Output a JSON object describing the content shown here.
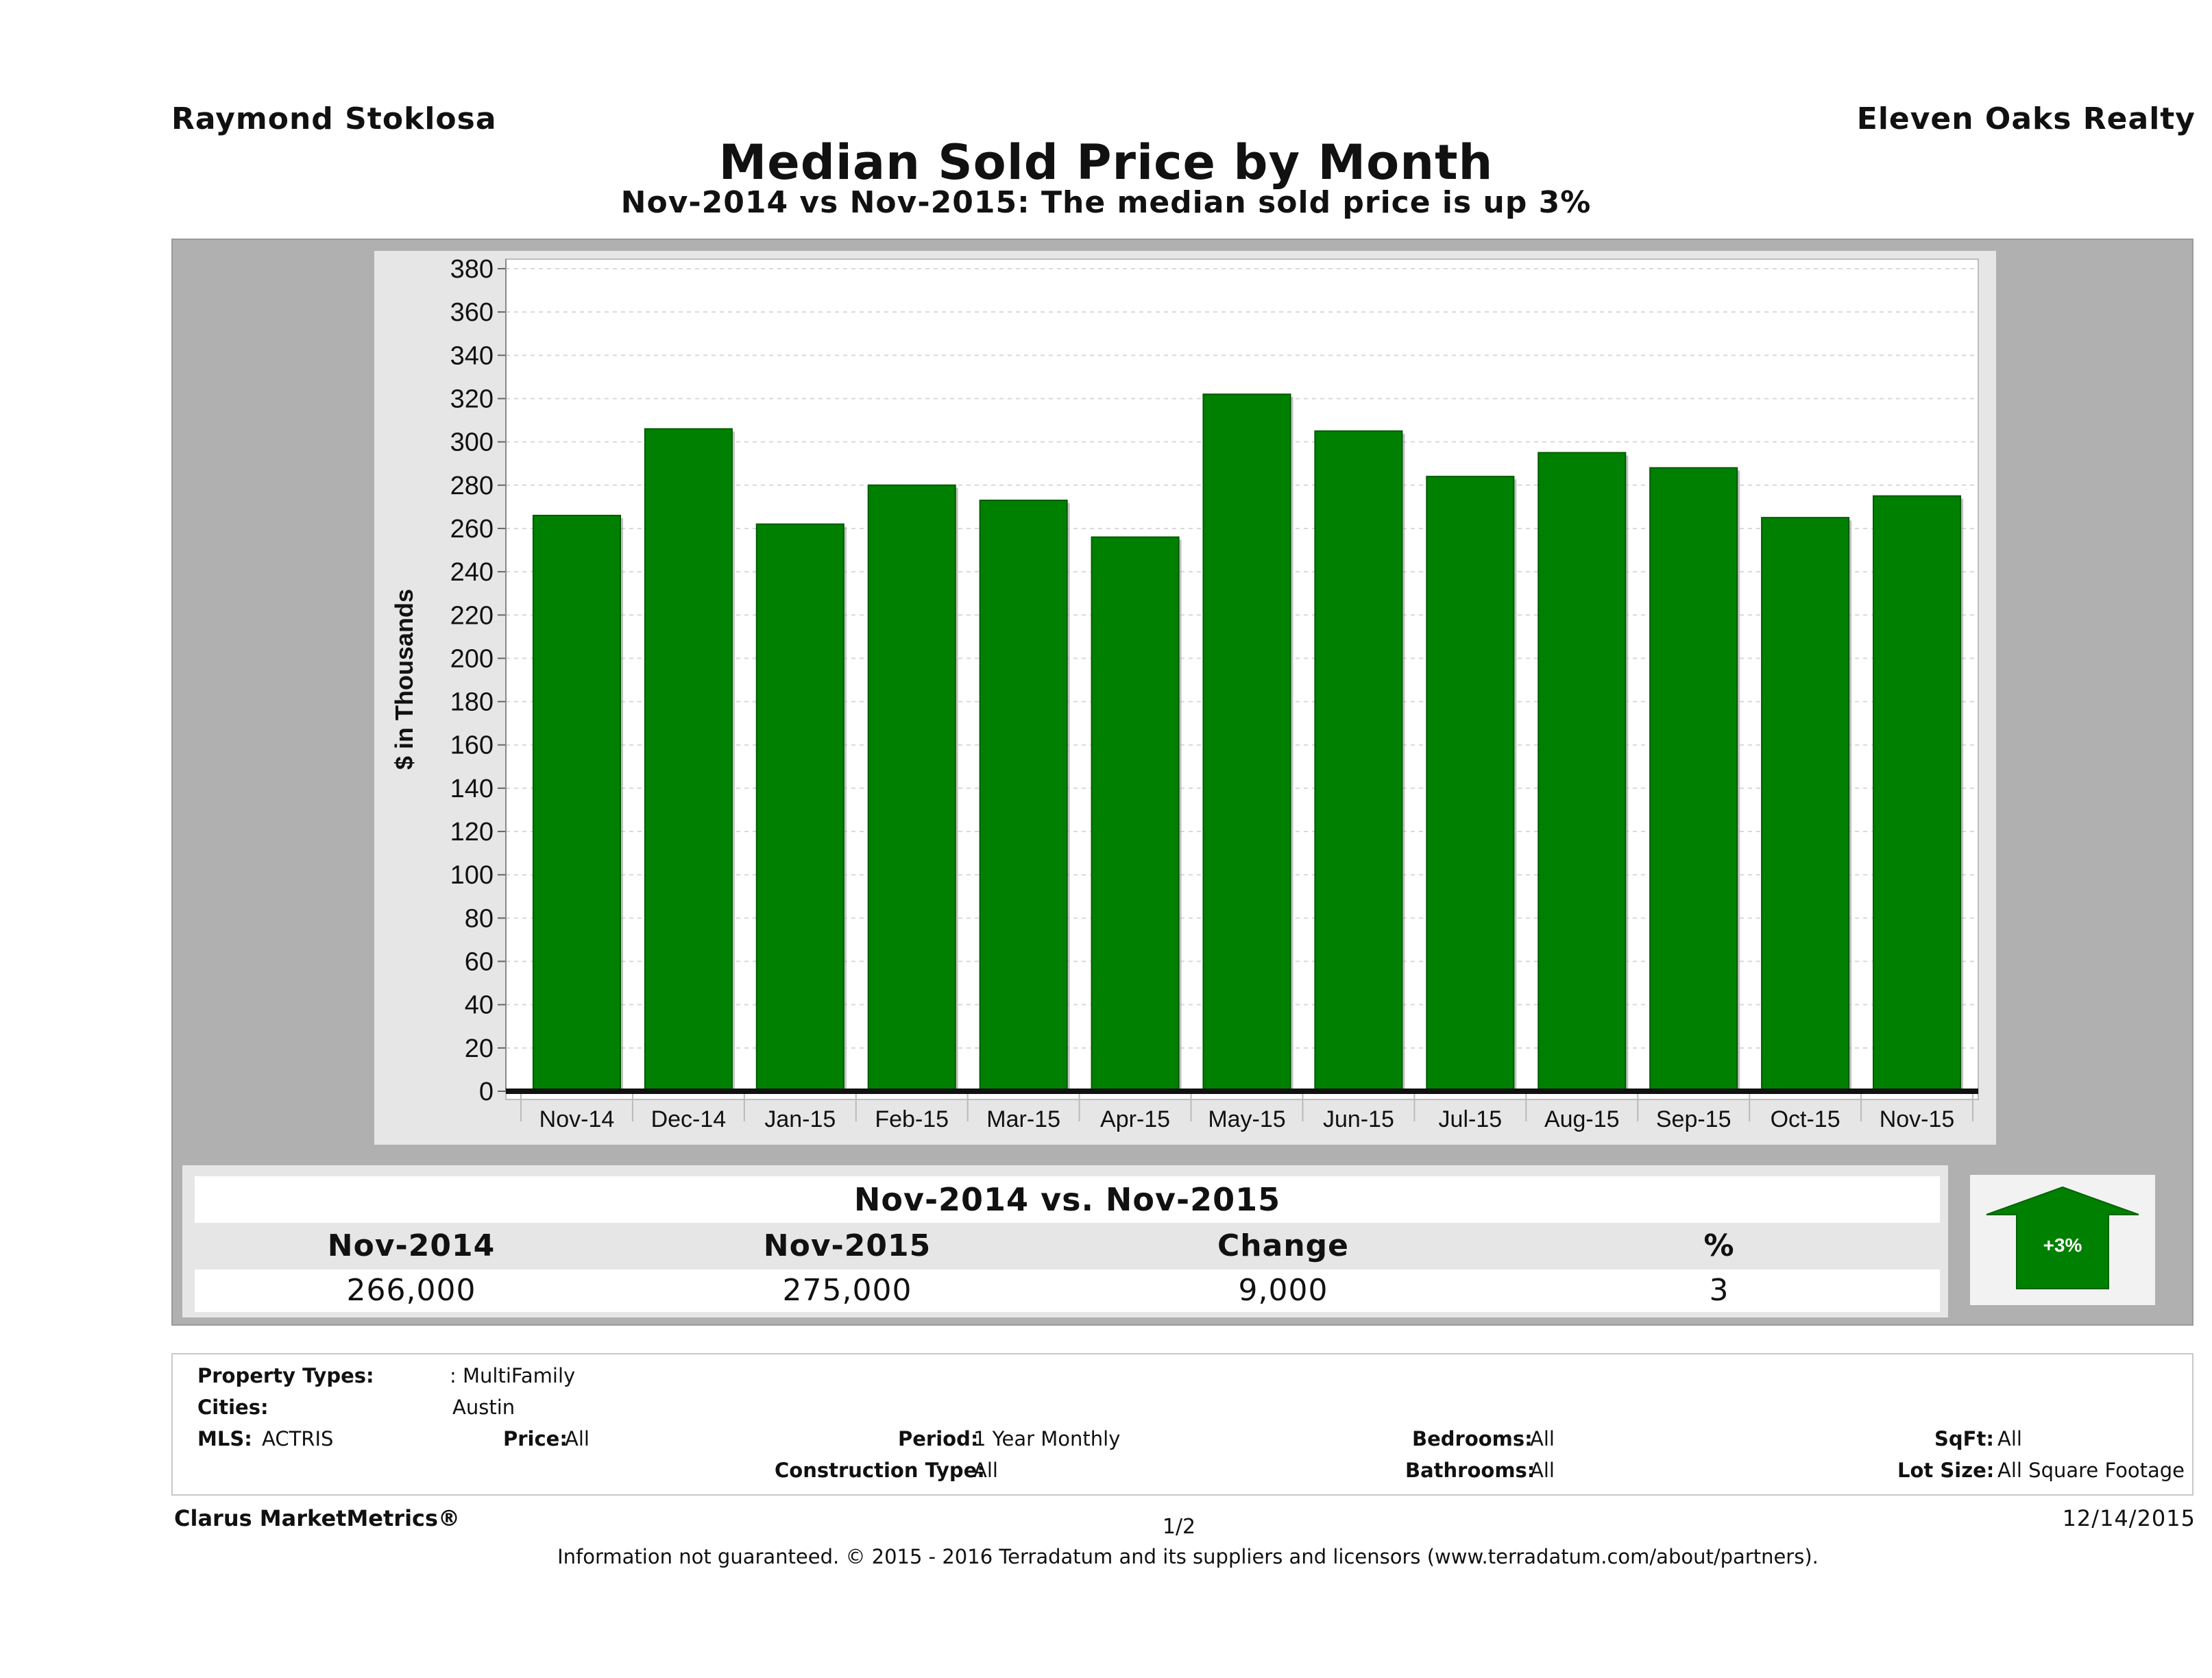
{
  "header": {
    "agent_name": "Raymond Stoklosa",
    "brokerage": "Eleven Oaks Realty"
  },
  "chart_data": {
    "type": "bar",
    "title": "Median Sold Price by Month",
    "subtitle": "Nov-2014 vs Nov-2015: The median sold price is up 3%",
    "ylabel": "$ in Thousands",
    "xlabel": "",
    "ylim": [
      0,
      380
    ],
    "ytick_step": 20,
    "grid": true,
    "bar_color": "#008000",
    "categories": [
      "Nov-14",
      "Dec-14",
      "Jan-15",
      "Feb-15",
      "Mar-15",
      "Apr-15",
      "May-15",
      "Jun-15",
      "Jul-15",
      "Aug-15",
      "Sep-15",
      "Oct-15",
      "Nov-15"
    ],
    "values": [
      266,
      306,
      262,
      280,
      273,
      256,
      322,
      305,
      284,
      295,
      288,
      265,
      275
    ]
  },
  "comparison": {
    "title": "Nov-2014 vs. Nov-2015",
    "headers": [
      "Nov-2014",
      "Nov-2015",
      "Change",
      "%"
    ],
    "values": [
      "266,000",
      "275,000",
      "9,000",
      "3"
    ],
    "badge": "+3%",
    "badge_color": "#008000"
  },
  "filters": {
    "property_types_label": "Property Types:",
    "property_types_value": ": MultiFamily",
    "cities_label": "Cities:",
    "cities_value": "Austin",
    "mls_label": "MLS:",
    "mls_value": "ACTRIS",
    "price_label": "Price:",
    "price_value": "All",
    "period_label": "Period:",
    "period_value": "1 Year Monthly",
    "construction_label": "Construction Type:",
    "construction_value": "All",
    "bedrooms_label": "Bedrooms:",
    "bedrooms_value": "All",
    "bathrooms_label": "Bathrooms:",
    "bathrooms_value": "All",
    "sqft_label": "SqFt:",
    "sqft_value": "All",
    "lot_label": "Lot Size:",
    "lot_value": "All Square Footage"
  },
  "footer": {
    "brand": "Clarus MarketMetrics®",
    "page": "1/2",
    "date": "12/14/2015",
    "disclaimer": "Information not guaranteed. © 2015 - 2016 Terradatum and its suppliers and licensors (www.terradatum.com/about/partners)."
  }
}
